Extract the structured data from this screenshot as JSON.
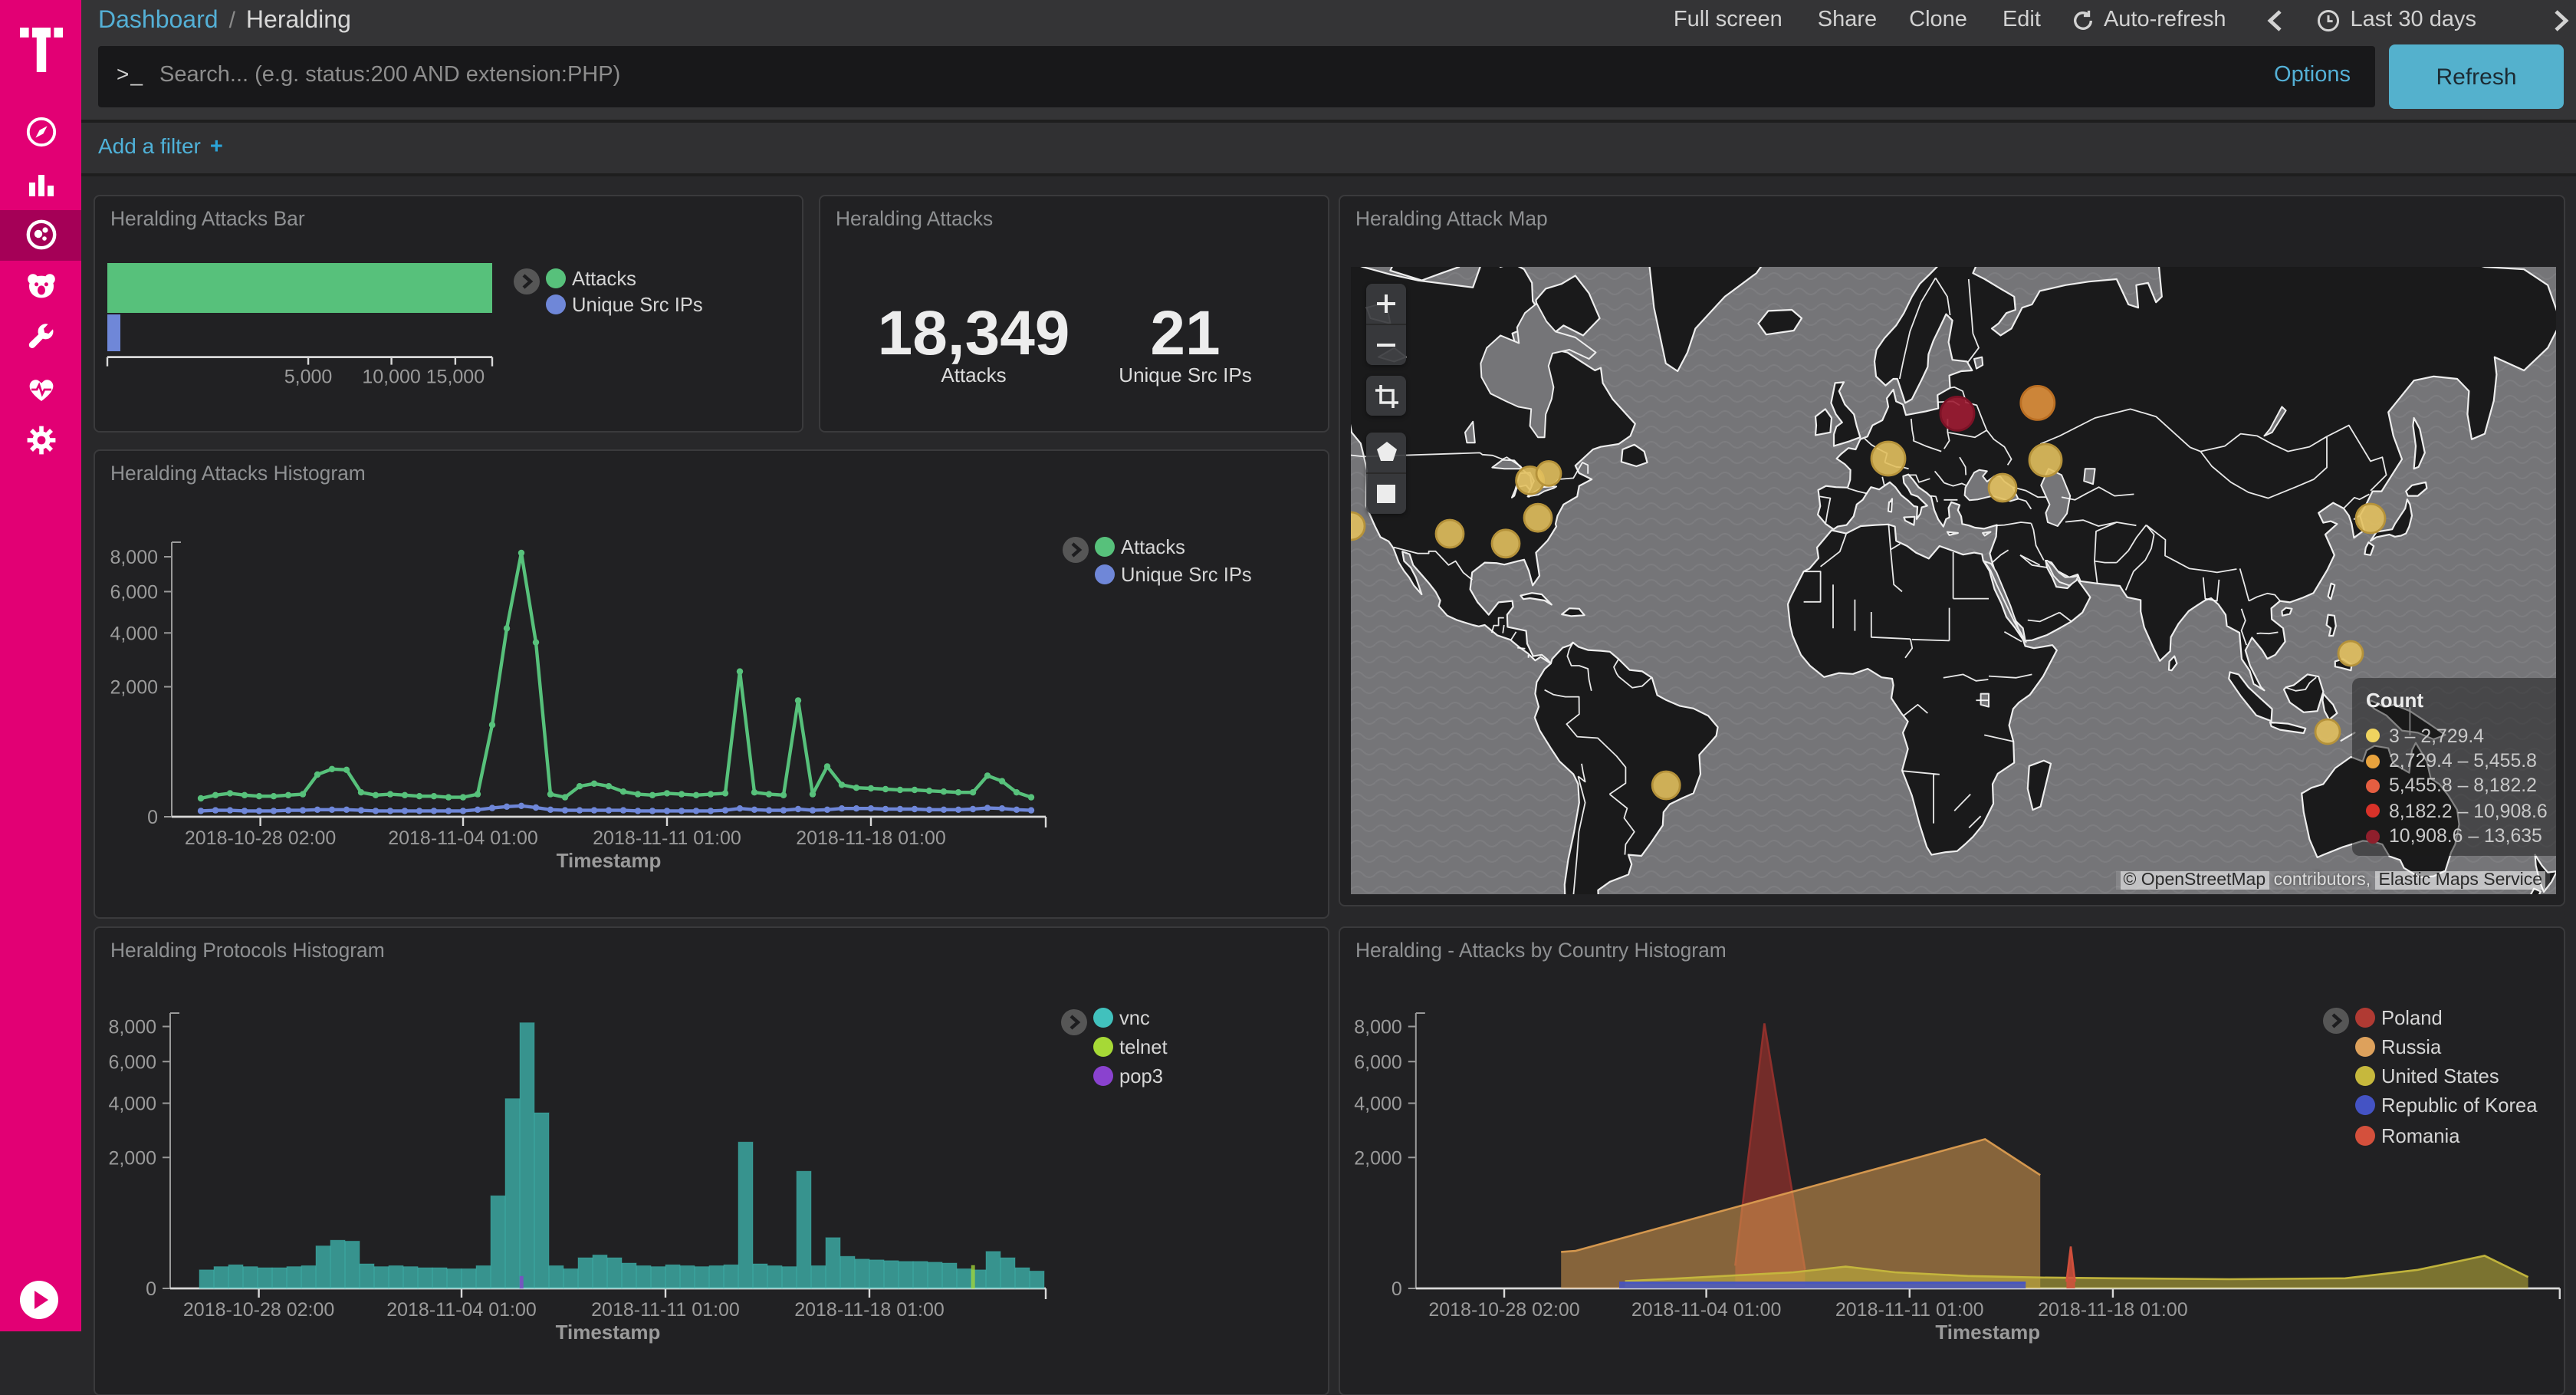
{
  "colors": {
    "brand_magenta": "#e20074",
    "brand_magenta_active": "#a50057",
    "link_blue": "#54b0d6",
    "refresh_button": "#54b1cd",
    "attacks_green": "#57c17b",
    "unique_blue": "#6f87d8",
    "vnc_teal": "#3fbcb4",
    "telnet_green": "#a6d936",
    "pop3_purple": "#8a42cf",
    "poland_red": "#a93833",
    "russia_orange": "#dda15c"
  },
  "sidebar": {
    "logo": "t-logo",
    "items": [
      {
        "name": "discover",
        "icon": "compass-icon"
      },
      {
        "name": "visualize",
        "icon": "bar-chart-icon"
      },
      {
        "name": "dashboard",
        "icon": "dashboard-icon",
        "selected": true
      },
      {
        "name": "timelion",
        "icon": "bear-icon"
      },
      {
        "name": "dev-tools",
        "icon": "wrench-icon"
      },
      {
        "name": "monitoring",
        "icon": "heartbeat-icon"
      },
      {
        "name": "management",
        "icon": "gear-icon"
      }
    ],
    "bottom_icon": "play-circle-icon"
  },
  "topnav": {
    "breadcrumb": {
      "root": "Dashboard",
      "separator": "/",
      "current": "Heralding"
    },
    "menu": [
      "Full screen",
      "Share",
      "Clone",
      "Edit"
    ],
    "auto_refresh": "Auto-refresh",
    "time_range": "Last 30 days",
    "prev_icon": "chevron-left-icon",
    "next_icon": "chevron-right-icon",
    "clock_icon": "clock-icon"
  },
  "search": {
    "prompt": ">_",
    "placeholder": "Search... (e.g. status:200 AND extension:PHP)",
    "options_label": "Options",
    "refresh_label": "Refresh"
  },
  "filter_bar": {
    "label": "Add a filter",
    "plus": "+"
  },
  "panels": {
    "bar": {
      "title": "Heralding Attacks Bar",
      "legend": [
        {
          "label": "Attacks",
          "color": "#57c17b"
        },
        {
          "label": "Unique Src IPs",
          "color": "#6f87d8"
        }
      ]
    },
    "metric": {
      "title": "Heralding Attacks",
      "metrics": [
        {
          "value": "18,349",
          "label": "Attacks"
        },
        {
          "value": "21",
          "label": "Unique Src IPs"
        }
      ]
    },
    "map": {
      "title": "Heralding Attack Map",
      "legend_title": "Count",
      "legend": [
        {
          "range": "3 – 2,729.4",
          "color": "#efd35f"
        },
        {
          "range": "2,729.4 – 5,455.8",
          "color": "#e8a33d"
        },
        {
          "range": "5,455.8 – 8,182.2",
          "color": "#e55e41"
        },
        {
          "range": "8,182.2 – 10,908.6",
          "color": "#d93229"
        },
        {
          "range": "10,908.6 – 13,635",
          "color": "#8f1f2c"
        }
      ],
      "attribution": {
        "c": "©",
        "osm": "OpenStreetMap",
        "mid": "contributors,",
        "ems": "Elastic Maps Service"
      },
      "controls": [
        "zoom-in-icon",
        "zoom-out-icon",
        "crop-icon",
        "polygon-icon",
        "rectangle-icon"
      ],
      "markers": [
        {
          "x": 395.5,
          "y": 95.7,
          "r": 11,
          "c": "#9e1c33",
          "s": "#7c1226"
        },
        {
          "x": 447.9,
          "y": 88.7,
          "r": 11,
          "c": "#e0913d",
          "s": "#bb6f23"
        },
        {
          "x": 350.5,
          "y": 125,
          "r": 11,
          "c": "#e2c05e",
          "s": "#b5923a"
        },
        {
          "x": 453,
          "y": 126,
          "r": 10.5,
          "c": "#e2c05e",
          "s": "#b5923a"
        },
        {
          "x": 425,
          "y": 144,
          "r": 9,
          "c": "#e2c05e",
          "s": "#b5923a"
        },
        {
          "x": 116.8,
          "y": 139.2,
          "r": 9,
          "c": "#e2c05e",
          "s": "#b5923a"
        },
        {
          "x": 129,
          "y": 134.7,
          "r": 8,
          "c": "#e2c05e",
          "s": "#b5923a"
        },
        {
          "x": 122,
          "y": 163.6,
          "r": 9,
          "c": "#e2c05e",
          "s": "#b5923a"
        },
        {
          "x": 64.5,
          "y": 174,
          "r": 9,
          "c": "#e2c05e",
          "s": "#b5923a"
        },
        {
          "x": 101,
          "y": 180.4,
          "r": 9,
          "c": "#e2c05e",
          "s": "#b5923a"
        },
        {
          "x": 0,
          "y": 169,
          "r": 9,
          "c": "#e2c05e",
          "s": "#b5923a"
        },
        {
          "x": 665,
          "y": 164,
          "r": 9.5,
          "c": "#e2c05e",
          "s": "#b5923a"
        },
        {
          "x": 652,
          "y": 252,
          "r": 8,
          "c": "#e2c05e",
          "s": "#b5923a"
        },
        {
          "x": 637,
          "y": 303,
          "r": 8,
          "c": "#e2c05e",
          "s": "#b5923a"
        },
        {
          "x": 205.6,
          "y": 338,
          "r": 9,
          "c": "#e2c05e",
          "s": "#b5923a"
        }
      ]
    },
    "hist": {
      "title": "Heralding Attacks Histogram",
      "legend": [
        {
          "label": "Attacks",
          "color": "#57c17b"
        },
        {
          "label": "Unique Src IPs",
          "color": "#6f87d8"
        }
      ]
    },
    "protocols": {
      "title": "Heralding Protocols Histogram",
      "legend": [
        {
          "label": "vnc",
          "color": "#41c1bd"
        },
        {
          "label": "telnet",
          "color": "#a6d936"
        },
        {
          "label": "pop3",
          "color": "#8a42cf"
        }
      ]
    },
    "country": {
      "title": "Heralding - Attacks by Country Histogram",
      "legend": [
        {
          "label": "Poland",
          "color": "#b03a33"
        },
        {
          "label": "Russia",
          "color": "#dda15c"
        },
        {
          "label": "United States",
          "color": "#c6b83d"
        },
        {
          "label": "Republic of Korea",
          "color": "#4453c4"
        },
        {
          "label": "Romania",
          "color": "#d4503c"
        }
      ]
    }
  },
  "chart_data": [
    {
      "id": "bar",
      "type": "bar",
      "orientation": "horizontal",
      "title": "Heralding Attacks Bar",
      "categories": [
        "Attacks",
        "Unique Src IPs"
      ],
      "values": [
        18349,
        21
      ],
      "colors": [
        "#57c17b",
        "#6f87d8"
      ],
      "xticks": [
        5000,
        10000,
        15000
      ],
      "xtick_labels": [
        "5,000",
        "10,000",
        "15,000"
      ],
      "scale": "square root",
      "xlim": [
        0,
        18349
      ]
    },
    {
      "id": "hist",
      "type": "line",
      "title": "Heralding Attacks Histogram",
      "xlabel": "Timestamp",
      "ylabel": "",
      "scale": "square root",
      "ylim": [
        0,
        8800
      ],
      "yticks": [
        0,
        2000,
        4000,
        6000,
        8000
      ],
      "ytick_labels": [
        "0",
        "2,000",
        "4,000",
        "6,000",
        "8,000"
      ],
      "x_start_day": 1.0,
      "x_step_days": 0.5,
      "x_axis_origin": "2018-10-25 01:00",
      "xticks_days": [
        3.042,
        10,
        17,
        24
      ],
      "xtick_labels": [
        "2018-10-28 02:00",
        "2018-11-04 01:00",
        "2018-11-11 01:00",
        "2018-11-18 01:00"
      ],
      "series": [
        {
          "name": "Attacks",
          "color": "#57c17b",
          "values": [
            40,
            55,
            65,
            55,
            50,
            50,
            55,
            60,
            210,
            270,
            260,
            70,
            55,
            60,
            55,
            50,
            50,
            45,
            45,
            60,
            1000,
            4200,
            8235,
            3600,
            60,
            45,
            110,
            130,
            110,
            75,
            60,
            55,
            65,
            60,
            55,
            60,
            65,
            2500,
            70,
            60,
            55,
            1600,
            60,
            300,
            120,
            100,
            95,
            90,
            85,
            85,
            80,
            75,
            70,
            70,
            200,
            150,
            70,
            45
          ]
        },
        {
          "name": "Unique Src IPs",
          "color": "#6f87d8",
          "values": [
            4,
            5,
            5,
            4,
            4,
            4,
            5,
            5,
            6,
            6,
            6,
            5,
            4,
            4,
            4,
            4,
            4,
            4,
            4,
            6,
            9,
            12,
            14,
            10,
            6,
            5,
            5,
            5,
            5,
            5,
            4,
            4,
            4,
            4,
            4,
            4,
            5,
            8,
            6,
            5,
            5,
            7,
            5,
            6,
            8,
            8,
            8,
            7,
            7,
            7,
            6,
            6,
            6,
            7,
            9,
            8,
            6,
            5
          ]
        }
      ]
    },
    {
      "id": "protocols",
      "type": "bar",
      "title": "Heralding Protocols Histogram",
      "xlabel": "Timestamp",
      "scale": "square root",
      "ylim": [
        0,
        8800
      ],
      "yticks": [
        0,
        2000,
        4000,
        6000,
        8000
      ],
      "ytick_labels": [
        "0",
        "2,000",
        "4,000",
        "6,000",
        "8,000"
      ],
      "x_start_day": 1.0,
      "x_step_days": 0.5,
      "xticks_days": [
        3.042,
        10,
        17,
        24
      ],
      "xtick_labels": [
        "2018-10-28 02:00",
        "2018-11-04 01:00",
        "2018-11-11 01:00",
        "2018-11-18 01:00"
      ],
      "series": [
        {
          "name": "vnc",
          "color": "#3fbcb4",
          "values": [
            40,
            55,
            65,
            55,
            50,
            50,
            55,
            60,
            210,
            270,
            260,
            70,
            55,
            60,
            55,
            50,
            50,
            45,
            45,
            60,
            1000,
            4200,
            8235,
            3600,
            60,
            45,
            110,
            130,
            110,
            75,
            60,
            55,
            65,
            60,
            55,
            60,
            65,
            2500,
            70,
            60,
            55,
            1600,
            60,
            300,
            120,
            100,
            95,
            90,
            85,
            85,
            80,
            75,
            45,
            40,
            160,
            110,
            50,
            35
          ]
        },
        {
          "name": "telnet",
          "color": "#a6d936",
          "points": [
            [
              27.5,
              62
            ]
          ]
        },
        {
          "name": "pop3",
          "color": "#8a42cf",
          "points": [
            [
              12.0,
              17
            ]
          ]
        }
      ]
    },
    {
      "id": "country",
      "type": "area",
      "title": "Heralding - Attacks by Country Histogram",
      "xlabel": "Timestamp",
      "scale": "square root",
      "ylim": [
        0,
        8800
      ],
      "yticks": [
        0,
        2000,
        4000,
        6000,
        8000
      ],
      "ytick_labels": [
        "0",
        "2,000",
        "4,000",
        "6,000",
        "8,000"
      ],
      "xticks_days": [
        3.042,
        10,
        17,
        24
      ],
      "xtick_labels": [
        "2018-10-28 02:00",
        "2018-11-04 01:00",
        "2018-11-11 01:00",
        "2018-11-18 01:00"
      ],
      "series": [
        {
          "name": "Poland",
          "color": "#93302c",
          "points": [
            [
              11.0,
              60
            ],
            [
              12.0,
              8190
            ],
            [
              13.4,
              40
            ]
          ]
        },
        {
          "name": "Russia",
          "color": "#db9c50",
          "points": [
            [
              5.0,
              155
            ],
            [
              5.5,
              165
            ],
            [
              19.6,
              2600
            ],
            [
              21.5,
              1500
            ]
          ]
        },
        {
          "name": "United States",
          "color": "#c6b83d",
          "points": [
            [
              7.2,
              6
            ],
            [
              13.0,
              30
            ],
            [
              14.8,
              55
            ],
            [
              16.5,
              30
            ],
            [
              19,
              18
            ],
            [
              21.5,
              14
            ],
            [
              24,
              12
            ],
            [
              28,
              10
            ],
            [
              32,
              12
            ],
            [
              34.5,
              40
            ],
            [
              36.8,
              125
            ],
            [
              38.3,
              15
            ]
          ]
        },
        {
          "name": "Republic of Korea",
          "color": "#4453c4",
          "points": [
            [
              7.0,
              4
            ],
            [
              21.0,
              4
            ]
          ]
        },
        {
          "name": "Romania",
          "color": "#d4503c",
          "points": [
            [
              22.4,
              5
            ],
            [
              22.55,
              205
            ],
            [
              22.7,
              5
            ]
          ]
        }
      ]
    }
  ]
}
